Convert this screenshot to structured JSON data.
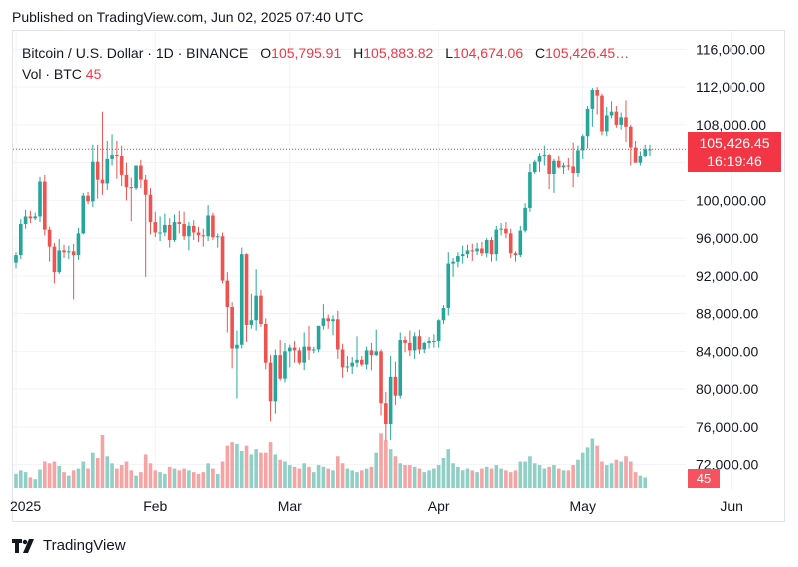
{
  "header": {
    "published": "Published on TradingView.com, Jun 02, 2025 07:40 UTC"
  },
  "legend": {
    "symbol": "Bitcoin / U.S. Dollar · 1D · BINANCE",
    "open_label": "O",
    "open": "105,795.91",
    "high_label": "H",
    "high": "105,883.82",
    "low_label": "L",
    "low": "104,674.06",
    "close_label": "C",
    "close": "105,426.45…",
    "volume_label": "Vol · BTC",
    "volume": "45"
  },
  "badges": {
    "last_price": "105,426.45",
    "countdown": "16:19:46",
    "volume": "45"
  },
  "brand": {
    "name": "TradingView",
    "logo_icon": "tradingview-logo-icon"
  },
  "colors": {
    "up": "#26a69a",
    "down": "#ef5350",
    "up_vol": "#8fcfc6",
    "down_vol": "#f5a3a3",
    "grid": "#f0f3fa",
    "price_line": "#f23645"
  },
  "chart_data": {
    "type": "candlestick",
    "title": "Bitcoin / U.S. Dollar",
    "interval": "1D",
    "exchange": "BINANCE",
    "y_axis": {
      "ticks": [
        "116,000.00",
        "112,000.00",
        "108,000.00",
        "104,000.00",
        "100,000.00",
        "96,000.00",
        "92,000.00",
        "88,000.00",
        "84,000.00",
        "80,000.00",
        "76,000.00",
        "72,000.00"
      ],
      "range": [
        71000,
        117000
      ]
    },
    "x_axis": {
      "ticks": [
        "2025",
        "Feb",
        "Mar",
        "Apr",
        "May",
        "Jun"
      ]
    },
    "last_price": 105426.45,
    "candles": [
      [
        93400,
        94500,
        92800,
        94200
      ],
      [
        94200,
        98000,
        93800,
        97500
      ],
      [
        97500,
        99000,
        97000,
        98300
      ],
      [
        98300,
        98900,
        97600,
        98100
      ],
      [
        98100,
        98700,
        97900,
        98300
      ],
      [
        98300,
        102500,
        97700,
        102000
      ],
      [
        102000,
        102700,
        96300,
        96900
      ],
      [
        96900,
        97200,
        93500,
        95100
      ],
      [
        95100,
        95500,
        91200,
        92400
      ],
      [
        92400,
        95900,
        92200,
        94700
      ],
      [
        94700,
        95300,
        93900,
        94500
      ],
      [
        94500,
        95200,
        93800,
        94600
      ],
      [
        94600,
        95400,
        89500,
        94200
      ],
      [
        94200,
        97100,
        93700,
        96500
      ],
      [
        96500,
        100800,
        96400,
        100500
      ],
      [
        100500,
        100900,
        99600,
        99900
      ],
      [
        99900,
        105900,
        99300,
        104100
      ],
      [
        104100,
        105900,
        100200,
        102200
      ],
      [
        102200,
        109400,
        100600,
        101800
      ],
      [
        101800,
        106300,
        101100,
        104400
      ],
      [
        104400,
        107000,
        103700,
        104800
      ],
      [
        104800,
        106300,
        102300,
        104700
      ],
      [
        104700,
        105800,
        101500,
        102700
      ],
      [
        102700,
        104000,
        100000,
        101400
      ],
      [
        101400,
        102400,
        97800,
        101300
      ],
      [
        101300,
        103700,
        101100,
        103700
      ],
      [
        103700,
        104300,
        101300,
        102200
      ],
      [
        102200,
        102700,
        91900,
        100600
      ],
      [
        100600,
        101300,
        96400,
        97700
      ],
      [
        97700,
        98800,
        96100,
        96600
      ],
      [
        96600,
        98300,
        95700,
        96600
      ],
      [
        96600,
        98600,
        96200,
        97400
      ],
      [
        97400,
        98100,
        95000,
        95800
      ],
      [
        95800,
        98500,
        95600,
        97700
      ],
      [
        97700,
        98900,
        96500,
        97500
      ],
      [
        97500,
        98800,
        95800,
        96200
      ],
      [
        96200,
        97700,
        94700,
        97300
      ],
      [
        97300,
        97900,
        95800,
        96600
      ],
      [
        96600,
        97200,
        95600,
        96300
      ],
      [
        96300,
        97000,
        95100,
        96200
      ],
      [
        96200,
        99500,
        95700,
        98400
      ],
      [
        98400,
        98700,
        95800,
        96100
      ],
      [
        96100,
        96500,
        95000,
        96200
      ],
      [
        96200,
        96600,
        91200,
        91500
      ],
      [
        91500,
        92400,
        86000,
        88700
      ],
      [
        88700,
        89200,
        82200,
        84300
      ],
      [
        84300,
        86200,
        79000,
        84700
      ],
      [
        84700,
        95000,
        84300,
        94300
      ],
      [
        94300,
        94400,
        85000,
        86800
      ],
      [
        86800,
        90100,
        86400,
        87300
      ],
      [
        87300,
        92700,
        86200,
        89900
      ],
      [
        89900,
        90500,
        86600,
        86900
      ],
      [
        86900,
        87500,
        82100,
        82800
      ],
      [
        82800,
        83600,
        76600,
        78700
      ],
      [
        78700,
        84200,
        77400,
        83600
      ],
      [
        83600,
        85200,
        80900,
        81100
      ],
      [
        81100,
        84900,
        80700,
        84000
      ],
      [
        84000,
        84700,
        82300,
        84400
      ],
      [
        84400,
        85100,
        82800,
        84100
      ],
      [
        84100,
        84400,
        82600,
        82800
      ],
      [
        82800,
        86000,
        82000,
        84500
      ],
      [
        84500,
        86700,
        83100,
        84100
      ],
      [
        84100,
        84500,
        83800,
        84200
      ],
      [
        84200,
        86700,
        83900,
        86700
      ],
      [
        86700,
        89000,
        86300,
        87500
      ],
      [
        87500,
        87900,
        86400,
        87200
      ],
      [
        87200,
        87800,
        85700,
        87400
      ],
      [
        87400,
        88300,
        83200,
        84200
      ],
      [
        84200,
        84800,
        81200,
        82300
      ],
      [
        82300,
        83500,
        81800,
        82400
      ],
      [
        82400,
        83400,
        81600,
        82800
      ],
      [
        82800,
        85600,
        82300,
        83100
      ],
      [
        83100,
        83500,
        82400,
        82600
      ],
      [
        82600,
        84500,
        82100,
        84100
      ],
      [
        84100,
        84900,
        82000,
        83600
      ],
      [
        83600,
        86300,
        83500,
        84000
      ],
      [
        84000,
        84200,
        77200,
        78500
      ],
      [
        78500,
        79700,
        74500,
        76300
      ],
      [
        76300,
        83500,
        74600,
        81300
      ],
      [
        81300,
        82900,
        78300,
        79300
      ],
      [
        79300,
        86000,
        79000,
        85200
      ],
      [
        85200,
        85600,
        83900,
        84900
      ],
      [
        84900,
        86200,
        83500,
        84100
      ],
      [
        84100,
        86000,
        83200,
        85600
      ],
      [
        85600,
        86300,
        83700,
        84200
      ],
      [
        84200,
        85000,
        83800,
        84900
      ],
      [
        84900,
        85500,
        84300,
        85100
      ],
      [
        85100,
        85800,
        84400,
        85100
      ],
      [
        85100,
        87400,
        84400,
        87300
      ],
      [
        87300,
        88900,
        86900,
        88600
      ],
      [
        88600,
        94500,
        87800,
        93300
      ],
      [
        93300,
        93900,
        91900,
        93500
      ],
      [
        93500,
        94500,
        92900,
        94100
      ],
      [
        94100,
        95200,
        93300,
        94300
      ],
      [
        94300,
        95300,
        93900,
        94700
      ],
      [
        94700,
        95400,
        93600,
        94600
      ],
      [
        94600,
        95500,
        94200,
        94900
      ],
      [
        94900,
        95600,
        94100,
        94400
      ],
      [
        94400,
        96000,
        94000,
        95800
      ],
      [
        95800,
        96100,
        93500,
        94300
      ],
      [
        94300,
        97300,
        93600,
        96900
      ],
      [
        96900,
        97600,
        96300,
        97000
      ],
      [
        97000,
        97700,
        96000,
        96500
      ],
      [
        96500,
        97000,
        93900,
        94400
      ],
      [
        94400,
        94600,
        93500,
        94200
      ],
      [
        94200,
        97300,
        94000,
        96800
      ],
      [
        96800,
        99700,
        96600,
        99200
      ],
      [
        99200,
        103900,
        98800,
        103000
      ],
      [
        103000,
        104300,
        102800,
        104100
      ],
      [
        104100,
        105000,
        103000,
        104700
      ],
      [
        104700,
        105800,
        103700,
        104800
      ],
      [
        104800,
        104900,
        101200,
        102800
      ],
      [
        102800,
        104400,
        100800,
        104200
      ],
      [
        104200,
        104700,
        103400,
        103500
      ],
      [
        103500,
        104000,
        102800,
        103700
      ],
      [
        103700,
        104500,
        103200,
        103600
      ],
      [
        103600,
        106100,
        101400,
        102900
      ],
      [
        102900,
        105800,
        102500,
        105300
      ],
      [
        105300,
        107000,
        104400,
        106800
      ],
      [
        106800,
        110000,
        105500,
        109700
      ],
      [
        109700,
        111900,
        107800,
        111700
      ],
      [
        111700,
        112000,
        109100,
        111100
      ],
      [
        111100,
        111300,
        106900,
        107300
      ],
      [
        107300,
        109900,
        106800,
        109000
      ],
      [
        109000,
        110500,
        108700,
        109400
      ],
      [
        109400,
        110000,
        107700,
        108000
      ],
      [
        108000,
        109300,
        107500,
        108800
      ],
      [
        108800,
        110600,
        106200,
        107800
      ],
      [
        107800,
        108000,
        103700,
        105600
      ],
      [
        105600,
        106300,
        104000,
        104000
      ],
      [
        104000,
        105200,
        103700,
        104700
      ],
      [
        104700,
        105900,
        104600,
        105400
      ],
      [
        105400,
        105900,
        104700,
        105400
      ]
    ],
    "volume": {
      "last": 45,
      "values": [
        16,
        20,
        18,
        12,
        10,
        21,
        30,
        28,
        30,
        25,
        18,
        14,
        20,
        22,
        30,
        22,
        40,
        34,
        60,
        36,
        28,
        22,
        26,
        30,
        20,
        14,
        18,
        38,
        28,
        20,
        18,
        16,
        24,
        22,
        20,
        22,
        20,
        18,
        16,
        18,
        28,
        22,
        16,
        30,
        48,
        52,
        50,
        42,
        48,
        38,
        44,
        40,
        40,
        52,
        38,
        32,
        30,
        26,
        24,
        22,
        28,
        24,
        18,
        26,
        24,
        22,
        20,
        36,
        28,
        22,
        20,
        18,
        20,
        22,
        24,
        40,
        62,
        54,
        44,
        36,
        28,
        26,
        26,
        24,
        22,
        18,
        20,
        22,
        26,
        34,
        44,
        28,
        24,
        20,
        22,
        20,
        18,
        22,
        24,
        22,
        26,
        22,
        20,
        18,
        20,
        30,
        30,
        36,
        28,
        26,
        22,
        24,
        26,
        22,
        20,
        20,
        26,
        32,
        40,
        46,
        56,
        48,
        30,
        26,
        28,
        32,
        30,
        36,
        30,
        18,
        14,
        12
      ]
    }
  }
}
